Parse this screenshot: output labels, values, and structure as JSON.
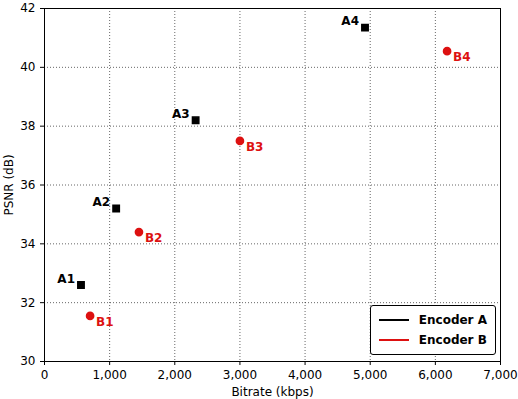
{
  "chart_data": {
    "type": "scatter",
    "x_label": "Bitrate (kbps)",
    "y_label": "PSNR (dB)",
    "xlim": [
      0,
      7000
    ],
    "xticks": [
      0,
      1000,
      2000,
      3000,
      4000,
      5000,
      6000,
      7000
    ],
    "ylim": [
      30,
      42
    ],
    "yticks": [
      30,
      32,
      34,
      36,
      38,
      40,
      42
    ],
    "grid": true,
    "legend": "lower right",
    "series": [
      {
        "name": "Encoder A",
        "color": "#000000",
        "marker": "square",
        "x": [
          560,
          1100,
          2320,
          4920
        ],
        "values": [
          32.6,
          35.2,
          38.2,
          41.35
        ],
        "labels": [
          "A1",
          "A2",
          "A3",
          "A4"
        ]
      },
      {
        "name": "Encoder B",
        "color": "#dd1111",
        "marker": "circle",
        "x": [
          700,
          1450,
          3000,
          6180
        ],
        "values": [
          31.55,
          34.4,
          37.5,
          40.55
        ],
        "labels": [
          "B1",
          "B2",
          "B3",
          "B4"
        ]
      }
    ]
  }
}
